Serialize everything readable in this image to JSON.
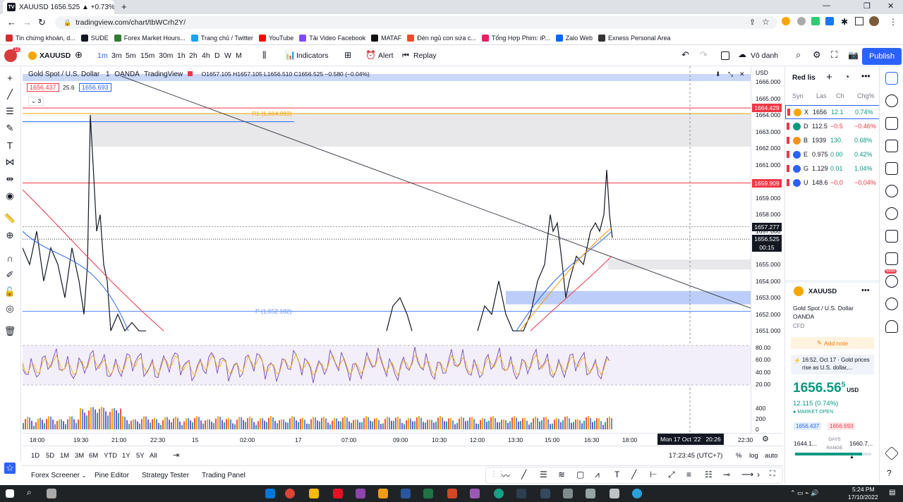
{
  "browser": {
    "tab_title": "XAUUSD 1656.525 ▲ +0.73% \\",
    "url": "tradingview.com/chart/tbWCrh2Y/",
    "bookmarks": [
      "Tin chứng khoán, d...",
      "SUDE",
      "Forex Market Hours...",
      "Trang chủ / Twitter",
      "YouTube",
      "Tải Video Facebook",
      "MATAF",
      "Đèn ngủ con sứa c...",
      "Tổng Hợp Phim: iP...",
      "Zalo Web",
      "Exness Personal Area"
    ]
  },
  "toolbar": {
    "symbol": "XAUUSD",
    "notif": "11",
    "intervals": [
      "1m",
      "3m",
      "5m",
      "15m",
      "30m",
      "1h",
      "2h",
      "4h",
      "D",
      "W",
      "M"
    ],
    "indicators": "Indicators",
    "alert": "Alert",
    "replay": "Replay",
    "layout": "Vô danh",
    "publish": "Publish"
  },
  "legend": {
    "title": "Gold Spot / U.S. Dollar",
    "interval": "1",
    "broker": "OANDA",
    "source": "TradingView",
    "ohlc": "O1657.105  H1657.105  L1656.510  C1656.525  −0.580 (−0.04%)",
    "bid": "1656.437",
    "spread": "25.6",
    "ask": "1656.693",
    "collapsed_count": "3"
  },
  "chart_data": {
    "type": "line",
    "symbol": "XAUUSD",
    "currency": "USD",
    "price_axis": [
      "1666.000",
      "1665.000",
      "1664.000",
      "1663.000",
      "1662.000",
      "1661.000",
      "1660.000",
      "1659.000",
      "1658.000",
      "1657.000",
      "1656.000",
      "1655.000",
      "1654.000",
      "1653.000",
      "1652.000",
      "1651.000"
    ],
    "rsi_axis": [
      "80.00",
      "60.00",
      "40.00",
      "20.00"
    ],
    "volume_axis": [
      "400",
      "200",
      "0"
    ],
    "time_axis": [
      "18:00",
      "19:30",
      "21:00",
      "22:30",
      "15",
      "02:00",
      "17",
      "07:00",
      "09:00",
      "10:30",
      "12:00",
      "13:30",
      "15:00",
      "16:30",
      "18:00",
      "22:30"
    ],
    "crosshair_time": "Mon 17 Oct '22   20:26",
    "price_tags": [
      {
        "label": "1664.429",
        "color": "#f23645"
      },
      {
        "label": "1659.909",
        "color": "#f23645"
      },
      {
        "label": "1657.277",
        "color": "#131722"
      },
      {
        "label": "1656.525",
        "color": "#131722"
      }
    ],
    "countdown": "00:15",
    "pivots": [
      {
        "label": "R1 (1,664.093)",
        "value": 1664.093
      },
      {
        "label": "P (1,652.182)",
        "value": 1652.182
      }
    ],
    "last_price": 1656.525,
    "range": [
      1650.8,
      1666.6
    ]
  },
  "ranges": [
    "1D",
    "5D",
    "1M",
    "3M",
    "6M",
    "YTD",
    "1Y",
    "5Y",
    "All"
  ],
  "clock": "17:23:45 (UTC+7)",
  "axis_opts": [
    "%",
    "log",
    "auto"
  ],
  "bottom_tabs": [
    "Forex Screener",
    "Pine Editor",
    "Strategy Tester",
    "Trading Panel"
  ],
  "watchlist": {
    "title": "Red lis",
    "cols": [
      "Syn",
      "Las",
      "Ch",
      "Chg%"
    ],
    "rows": [
      {
        "sym": "X",
        "last": "1656",
        "ch": "12.1",
        "chg": "0.74%",
        "color": "#f7a600",
        "pos": true
      },
      {
        "sym": "D",
        "last": "112.5",
        "ch": "−0.5",
        "chg": "−0.46%",
        "color": "#089981",
        "pos": false
      },
      {
        "sym": "B",
        "last": "1939",
        "ch": "130.",
        "chg": "0.68%",
        "color": "#f7931a",
        "pos": true
      },
      {
        "sym": "E",
        "last": "0.975",
        "ch": "0.00",
        "chg": "0.42%",
        "color": "#2962ff",
        "pos": true
      },
      {
        "sym": "G",
        "last": "1.129",
        "ch": "0.01",
        "chg": "1.04%",
        "color": "#2962ff",
        "pos": true
      },
      {
        "sym": "U",
        "last": "148.6",
        "ch": "−0.0",
        "chg": "−0.04%",
        "color": "#2962ff",
        "pos": false
      }
    ]
  },
  "details": {
    "symbol": "XAUUSD",
    "name": "Gold Spot / U.S. Dollar",
    "exchange": "OANDA",
    "type": "CFD",
    "add_note": "Add note",
    "news": "16:52, Oct 17 · Gold prices rise as U.S. dollar,...",
    "price": "1656.56",
    "price_sup": "5",
    "currency": "USD",
    "change": "12.115 (0.74%)",
    "status": "MARKET OPEN",
    "bid": "1656.437",
    "ask": "1656.693",
    "low": "1644.1...",
    "high": "1660.7...",
    "range_label": "DAYS RANGE"
  },
  "taskbar": {
    "time": "5:24 PM",
    "date": "17/10/2022",
    "badge": "6895"
  }
}
